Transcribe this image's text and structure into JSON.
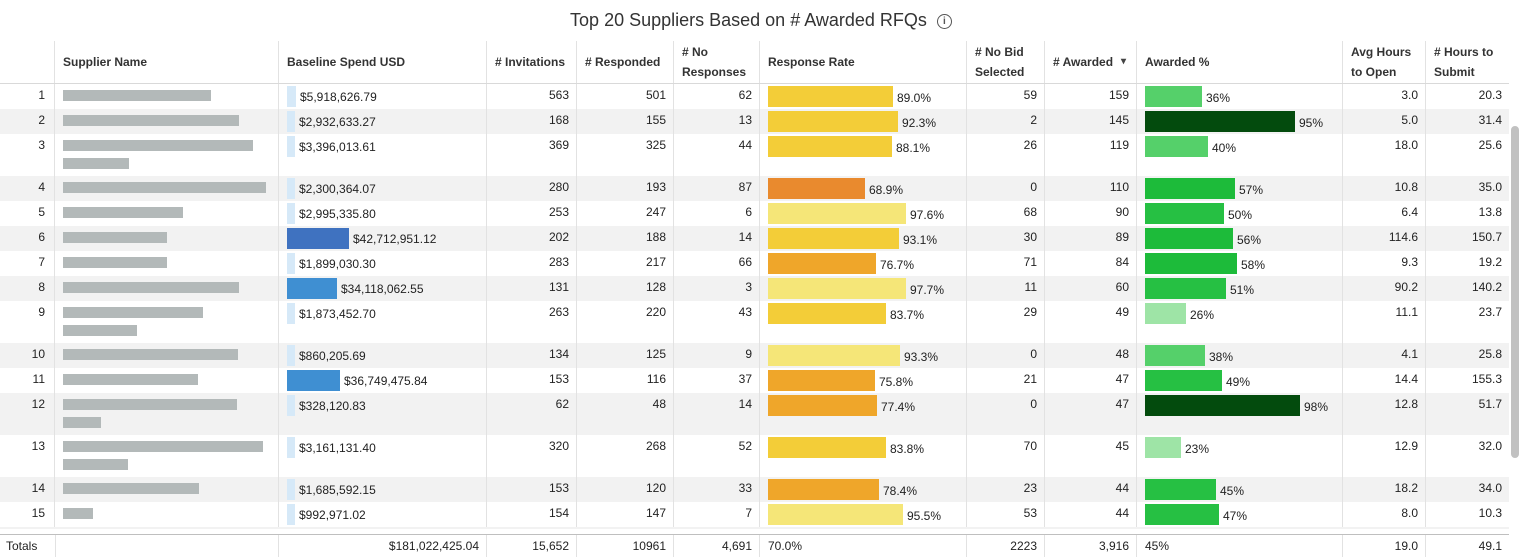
{
  "title": "Top 20 Suppliers Based on # Awarded RFQs",
  "icons": {
    "info": "info-icon",
    "sort": "chevron-down-icon"
  },
  "columns": [
    {
      "key": "idx",
      "label": ""
    },
    {
      "key": "supplier",
      "label": "Supplier Name"
    },
    {
      "key": "spend",
      "label": "Baseline Spend USD"
    },
    {
      "key": "invitations",
      "label": "# Invitations"
    },
    {
      "key": "responded",
      "label": "# Responded"
    },
    {
      "key": "no_resp",
      "label": "# No Responses"
    },
    {
      "key": "resp_rate",
      "label": "Response Rate"
    },
    {
      "key": "no_bid",
      "label": "# No Bid Selected"
    },
    {
      "key": "awarded",
      "label": "# Awarded"
    },
    {
      "key": "awarded_pct",
      "label": "Awarded %"
    },
    {
      "key": "avg_open",
      "label": "Avg Hours to Open"
    },
    {
      "key": "hours_submit",
      "label": "# Hours to Submit"
    }
  ],
  "rows": [
    {
      "idx": "1",
      "spend": "$5,918,626.79",
      "spend_v": 5918626.79,
      "invitations": "563",
      "responded": "501",
      "no_resp": "62",
      "resp_rate": "89.0%",
      "rr": 89.0,
      "no_bid": "59",
      "awarded": "159",
      "awarded_pct": "36%",
      "ap": 36,
      "avg_open": "3.0",
      "hours_submit": "20.3"
    },
    {
      "idx": "2",
      "spend": "$2,932,633.27",
      "spend_v": 2932633.27,
      "invitations": "168",
      "responded": "155",
      "no_resp": "13",
      "resp_rate": "92.3%",
      "rr": 92.3,
      "no_bid": "2",
      "awarded": "145",
      "awarded_pct": "95%",
      "ap": 95,
      "avg_open": "5.0",
      "hours_submit": "31.4"
    },
    {
      "idx": "3",
      "spend": "$3,396,013.61",
      "spend_v": 3396013.61,
      "invitations": "369",
      "responded": "325",
      "no_resp": "44",
      "resp_rate": "88.1%",
      "rr": 88.1,
      "no_bid": "26",
      "awarded": "119",
      "awarded_pct": "40%",
      "ap": 40,
      "avg_open": "18.0",
      "hours_submit": "25.6"
    },
    {
      "idx": "4",
      "spend": "$2,300,364.07",
      "spend_v": 2300364.07,
      "invitations": "280",
      "responded": "193",
      "no_resp": "87",
      "resp_rate": "68.9%",
      "rr": 68.9,
      "no_bid": "0",
      "awarded": "110",
      "awarded_pct": "57%",
      "ap": 57,
      "avg_open": "10.8",
      "hours_submit": "35.0"
    },
    {
      "idx": "5",
      "spend": "$2,995,335.80",
      "spend_v": 2995335.8,
      "invitations": "253",
      "responded": "247",
      "no_resp": "6",
      "resp_rate": "97.6%",
      "rr": 97.6,
      "no_bid": "68",
      "awarded": "90",
      "awarded_pct": "50%",
      "ap": 50,
      "avg_open": "6.4",
      "hours_submit": "13.8"
    },
    {
      "idx": "6",
      "spend": "$42,712,951.12",
      "spend_v": 42712951.12,
      "invitations": "202",
      "responded": "188",
      "no_resp": "14",
      "resp_rate": "93.1%",
      "rr": 93.1,
      "no_bid": "30",
      "awarded": "89",
      "awarded_pct": "56%",
      "ap": 56,
      "avg_open": "114.6",
      "hours_submit": "150.7"
    },
    {
      "idx": "7",
      "spend": "$1,899,030.30",
      "spend_v": 1899030.3,
      "invitations": "283",
      "responded": "217",
      "no_resp": "66",
      "resp_rate": "76.7%",
      "rr": 76.7,
      "no_bid": "71",
      "awarded": "84",
      "awarded_pct": "58%",
      "ap": 58,
      "avg_open": "9.3",
      "hours_submit": "19.2"
    },
    {
      "idx": "8",
      "spend": "$34,118,062.55",
      "spend_v": 34118062.55,
      "invitations": "131",
      "responded": "128",
      "no_resp": "3",
      "resp_rate": "97.7%",
      "rr": 97.7,
      "no_bid": "11",
      "awarded": "60",
      "awarded_pct": "51%",
      "ap": 51,
      "avg_open": "90.2",
      "hours_submit": "140.2"
    },
    {
      "idx": "9",
      "spend": "$1,873,452.70",
      "spend_v": 1873452.7,
      "invitations": "263",
      "responded": "220",
      "no_resp": "43",
      "resp_rate": "83.7%",
      "rr": 83.7,
      "no_bid": "29",
      "awarded": "49",
      "awarded_pct": "26%",
      "ap": 26,
      "avg_open": "11.1",
      "hours_submit": "23.7"
    },
    {
      "idx": "10",
      "spend": "$860,205.69",
      "spend_v": 860205.69,
      "invitations": "134",
      "responded": "125",
      "no_resp": "9",
      "resp_rate": "93.3%",
      "rr": 93.3,
      "no_bid": "0",
      "awarded": "48",
      "awarded_pct": "38%",
      "ap": 38,
      "avg_open": "4.1",
      "hours_submit": "25.8"
    },
    {
      "idx": "11",
      "spend": "$36,749,475.84",
      "spend_v": 36749475.84,
      "invitations": "153",
      "responded": "116",
      "no_resp": "37",
      "resp_rate": "75.8%",
      "rr": 75.8,
      "no_bid": "21",
      "awarded": "47",
      "awarded_pct": "49%",
      "ap": 49,
      "avg_open": "14.4",
      "hours_submit": "155.3"
    },
    {
      "idx": "12",
      "spend": "$328,120.83",
      "spend_v": 328120.83,
      "invitations": "62",
      "responded": "48",
      "no_resp": "14",
      "resp_rate": "77.4%",
      "rr": 77.4,
      "no_bid": "0",
      "awarded": "47",
      "awarded_pct": "98%",
      "ap": 98,
      "avg_open": "12.8",
      "hours_submit": "51.7"
    },
    {
      "idx": "13",
      "spend": "$3,161,131.40",
      "spend_v": 3161131.4,
      "invitations": "320",
      "responded": "268",
      "no_resp": "52",
      "resp_rate": "83.8%",
      "rr": 83.8,
      "no_bid": "70",
      "awarded": "45",
      "awarded_pct": "23%",
      "ap": 23,
      "avg_open": "12.9",
      "hours_submit": "32.0"
    },
    {
      "idx": "14",
      "spend": "$1,685,592.15",
      "spend_v": 1685592.15,
      "invitations": "153",
      "responded": "120",
      "no_resp": "33",
      "resp_rate": "78.4%",
      "rr": 78.4,
      "no_bid": "23",
      "awarded": "44",
      "awarded_pct": "45%",
      "ap": 45,
      "avg_open": "18.2",
      "hours_submit": "34.0"
    },
    {
      "idx": "15",
      "spend": "$992,971.02",
      "spend_v": 992971.02,
      "invitations": "154",
      "responded": "147",
      "no_resp": "7",
      "resp_rate": "95.5%",
      "rr": 95.5,
      "no_bid": "53",
      "awarded": "44",
      "awarded_pct": "47%",
      "ap": 47,
      "avg_open": "8.0",
      "hours_submit": "10.3"
    }
  ],
  "totals": {
    "label": "Totals",
    "spend": "$181,022,425.04",
    "invitations": "15,652",
    "responded": "10961",
    "no_resp": "4,691",
    "resp_rate": "70.0%",
    "no_bid": "2223",
    "awarded": "3,916",
    "awarded_pct": "45%",
    "avg_open": "19.0",
    "hours_submit": "49.1"
  },
  "colors": {
    "row_alt": "#f2f2f2",
    "spend_bar_light": "#d6e9f8",
    "spend_bar_mid": "#3f8fd2",
    "spend_bar_dark": "#3f72c0",
    "rr_low": "#e98a2e",
    "rr_mid": "#efa62a",
    "rr_high": "#f3cd38",
    "rr_top": "#f5e678",
    "ap_light": "#9ee4a6",
    "ap_mid": "#55d06a",
    "ap_high": "#1dbb3a",
    "ap_dark": "#034b0d",
    "partial_red": "#d8232a"
  }
}
